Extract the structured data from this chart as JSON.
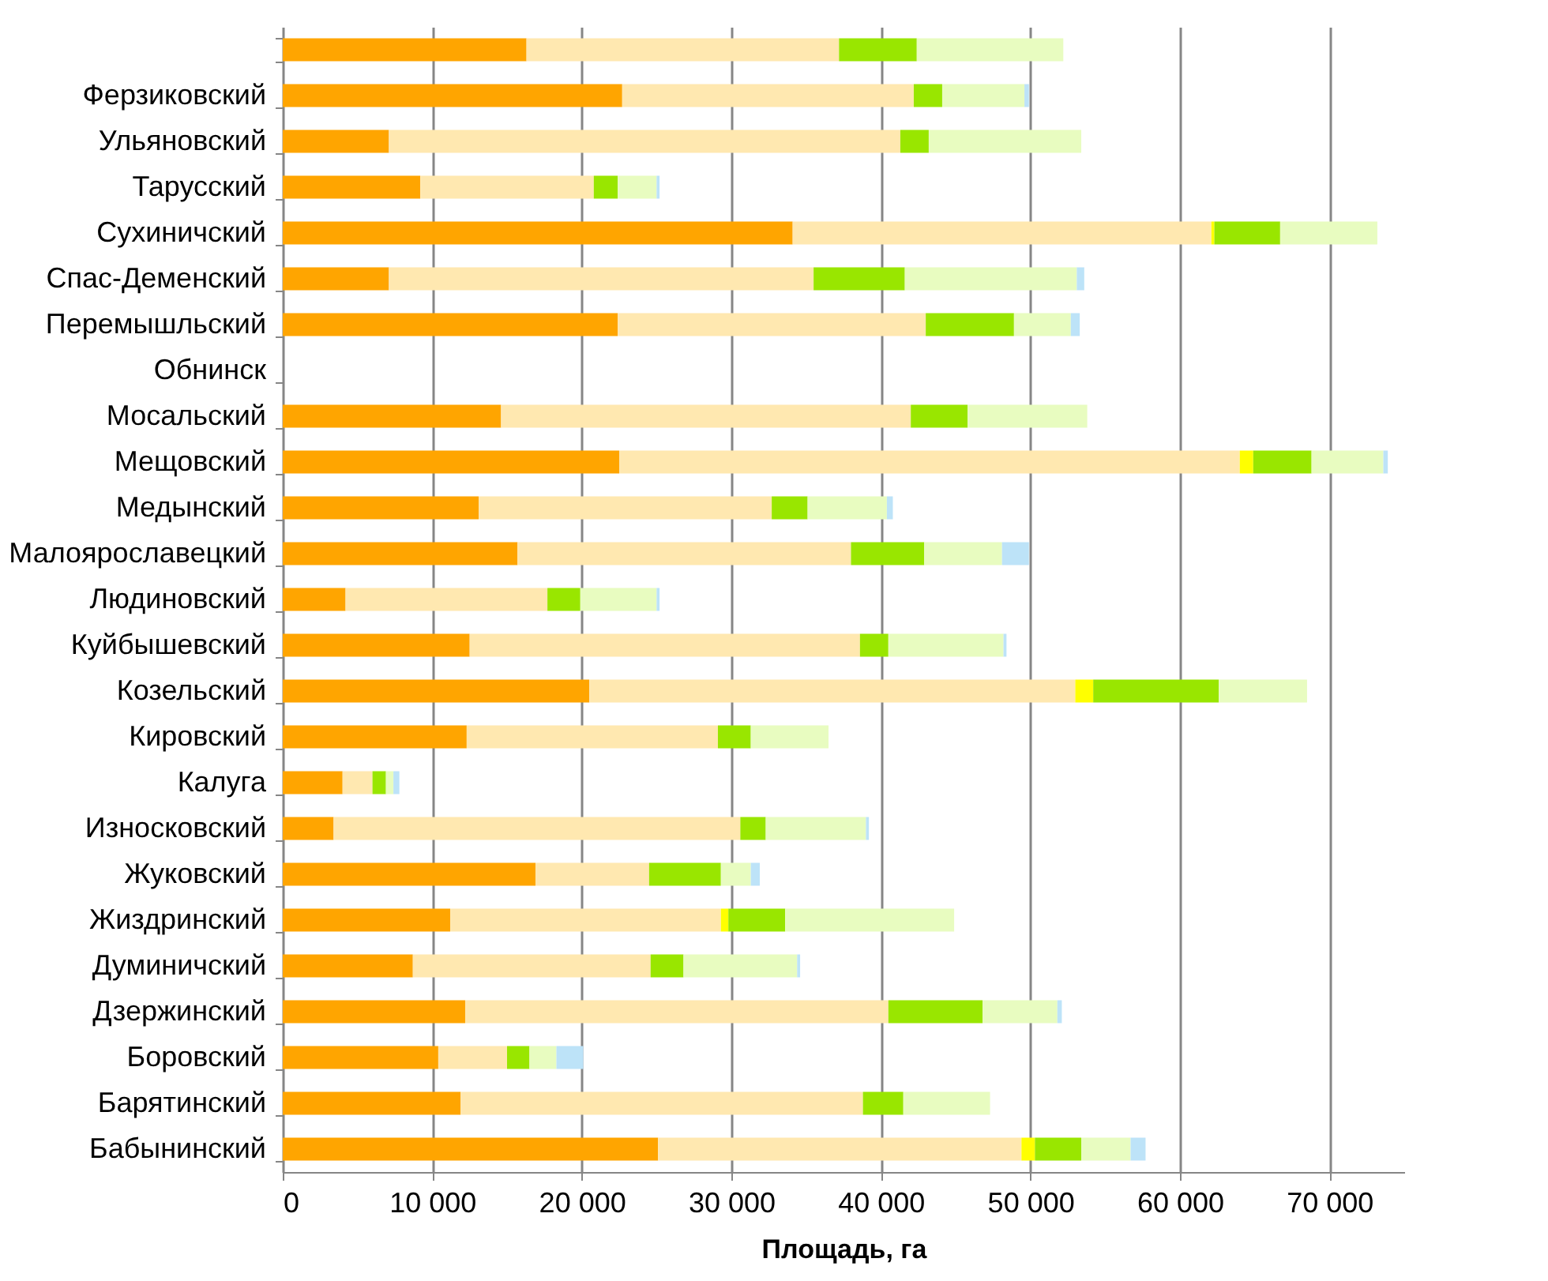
{
  "chart_data": {
    "type": "bar",
    "orientation": "horizontal",
    "stacked": true,
    "xlabel": "Площадь, га",
    "categories": [
      null,
      "Ферзиковский",
      "Ульяновский",
      "Тарусский",
      "Сухиничский",
      "Спас-Деменский",
      "Перемышльский",
      "Обнинск",
      "Мосальский",
      "Мещовский",
      "Медынский",
      "Малоярославецкий",
      "Людиновский",
      "Куйбышевский",
      "Козельский",
      "Кировский",
      "Калуга",
      "Износковский",
      "Жуковский",
      "Жиздринский",
      "Думиничский",
      "Дзержинский",
      "Боровский",
      "Барятинский",
      "Бабынинский"
    ],
    "series": [
      {
        "color": "#ffa500",
        "values": [
          16300,
          22700,
          7100,
          9200,
          34100,
          7100,
          22400,
          null,
          14600,
          22500,
          13100,
          15700,
          4200,
          12500,
          20500,
          12300,
          4000,
          3400,
          16900,
          11200,
          8700,
          12200,
          10400,
          11900,
          25100
        ]
      },
      {
        "color": "#ffe8b0",
        "values": [
          20900,
          19500,
          34200,
          11600,
          28000,
          28400,
          20600,
          null,
          27400,
          41500,
          19600,
          22300,
          13500,
          26100,
          32500,
          16800,
          2000,
          27200,
          7600,
          18100,
          15900,
          28300,
          4600,
          26900,
          24300
        ]
      },
      {
        "color": "#ffff00",
        "values": [
          null,
          null,
          null,
          null,
          200,
          null,
          null,
          null,
          null,
          900,
          null,
          null,
          null,
          null,
          1200,
          null,
          null,
          null,
          null,
          500,
          null,
          null,
          null,
          null,
          900
        ]
      },
      {
        "color": "#99e600",
        "values": [
          5200,
          1900,
          1900,
          1600,
          4400,
          6100,
          5900,
          null,
          3800,
          3900,
          2400,
          4900,
          2200,
          1900,
          8400,
          2200,
          900,
          1700,
          4800,
          3800,
          2200,
          6300,
          1500,
          2700,
          3100
        ]
      },
      {
        "color": "#e8fcc0",
        "values": [
          9800,
          5500,
          10200,
          2600,
          6500,
          11500,
          3800,
          null,
          8000,
          4800,
          5300,
          5200,
          5100,
          7700,
          5900,
          5200,
          500,
          6700,
          2000,
          11300,
          7600,
          5000,
          1800,
          5800,
          3300
        ]
      },
      {
        "color": "#bde3f8",
        "values": [
          null,
          300,
          null,
          200,
          null,
          500,
          600,
          null,
          null,
          300,
          400,
          1800,
          200,
          200,
          null,
          null,
          400,
          200,
          600,
          null,
          200,
          300,
          1800,
          null,
          1000
        ]
      }
    ],
    "xlim": [
      0,
      75000
    ],
    "xticks": [
      0,
      {
        "value": 10000,
        "label": "10 000"
      },
      {
        "value": 20000,
        "label": "20 000"
      },
      {
        "value": 30000,
        "label": "30 000"
      },
      {
        "value": 40000,
        "label": "40 000"
      },
      {
        "value": 50000,
        "label": "50 000"
      },
      {
        "value": 60000,
        "label": "60 000"
      },
      {
        "value": 70000,
        "label": "70 000"
      }
    ],
    "grid": "x"
  }
}
